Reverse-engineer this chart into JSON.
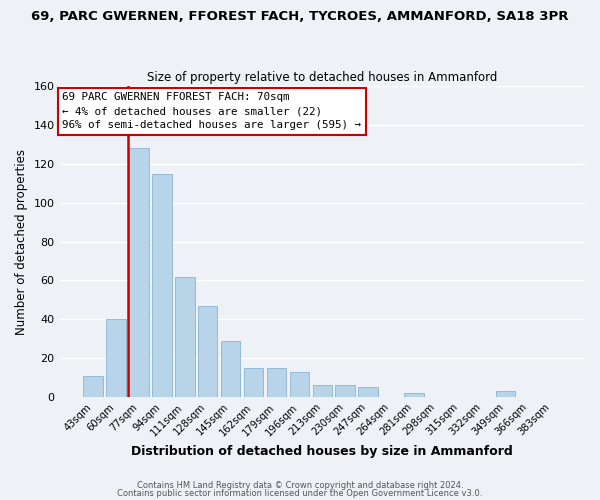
{
  "title": "69, PARC GWERNEN, FFOREST FACH, TYCROES, AMMANFORD, SA18 3PR",
  "subtitle": "Size of property relative to detached houses in Ammanford",
  "xlabel": "Distribution of detached houses by size in Ammanford",
  "ylabel": "Number of detached properties",
  "bar_labels": [
    "43sqm",
    "60sqm",
    "77sqm",
    "94sqm",
    "111sqm",
    "128sqm",
    "145sqm",
    "162sqm",
    "179sqm",
    "196sqm",
    "213sqm",
    "230sqm",
    "247sqm",
    "264sqm",
    "281sqm",
    "298sqm",
    "315sqm",
    "332sqm",
    "349sqm",
    "366sqm",
    "383sqm"
  ],
  "bar_values": [
    11,
    40,
    128,
    115,
    62,
    47,
    29,
    15,
    15,
    13,
    6,
    6,
    5,
    0,
    2,
    0,
    0,
    0,
    3,
    0,
    0
  ],
  "bar_color": "#b8d4e8",
  "bar_edge_color": "#8ab4d4",
  "highlight_color": "#cc0000",
  "highlight_bar_idx": 2,
  "ylim": [
    0,
    160
  ],
  "yticks": [
    0,
    20,
    40,
    60,
    80,
    100,
    120,
    140,
    160
  ],
  "annotation_lines": [
    "69 PARC GWERNEN FFOREST FACH: 70sqm",
    "← 4% of detached houses are smaller (22)",
    "96% of semi-detached houses are larger (595) →"
  ],
  "footer_line1": "Contains HM Land Registry data © Crown copyright and database right 2024.",
  "footer_line2": "Contains public sector information licensed under the Open Government Licence v3.0.",
  "background_color": "#eef2f7",
  "grid_color": "#ffffff"
}
